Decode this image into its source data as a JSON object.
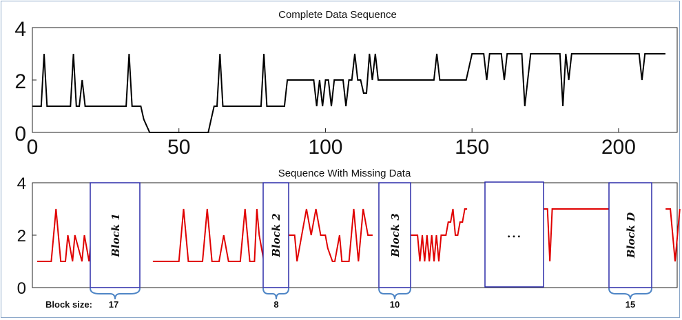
{
  "chart_data": [
    {
      "type": "line",
      "title": "Complete Data Sequence",
      "xlabel": "",
      "ylabel": "",
      "xlim": [
        0,
        220
      ],
      "ylim": [
        0,
        4
      ],
      "x_ticks": [
        "0",
        "50",
        "100",
        "150",
        "200"
      ],
      "y_ticks": [
        "0",
        "2",
        "4"
      ],
      "color": "#000000",
      "series": [
        {
          "x": [
            0,
            3,
            4,
            5,
            13,
            14,
            15,
            16,
            17,
            18,
            32,
            33,
            34,
            37,
            38,
            40,
            60,
            61,
            62,
            63,
            64,
            65,
            78,
            79,
            80,
            86,
            87,
            96,
            97,
            98,
            99,
            100,
            101,
            102,
            103,
            106,
            107,
            108,
            109,
            110,
            111,
            112,
            113,
            114,
            115,
            116,
            117,
            118,
            119,
            137,
            138,
            139,
            148,
            150,
            154,
            155,
            156,
            160,
            161,
            162,
            166,
            167,
            168,
            170,
            171,
            172,
            180,
            181,
            182,
            183,
            184,
            185,
            186,
            207,
            208,
            209,
            216
          ],
          "y": [
            1,
            1,
            3,
            1,
            1,
            3,
            1,
            1,
            2,
            1,
            1,
            3,
            1,
            1,
            0.5,
            0,
            0,
            0.5,
            1,
            1,
            3,
            1,
            1,
            3,
            1,
            1,
            2,
            2,
            1,
            2,
            1,
            2,
            2,
            1,
            2,
            2,
            1,
            2,
            2,
            3,
            2,
            2,
            1.5,
            1.5,
            3,
            2,
            3,
            2,
            2,
            2,
            3,
            2,
            2,
            3,
            3,
            2,
            3,
            3,
            2,
            3,
            3,
            3,
            1,
            3,
            3,
            3,
            3,
            1,
            3,
            2,
            3,
            3,
            3,
            3,
            2,
            3,
            3
          ]
        }
      ]
    },
    {
      "type": "line",
      "title": "Sequence With Missing Data",
      "xlabel": "",
      "ylabel": "",
      "xlim": [
        0,
        220
      ],
      "ylim": [
        0,
        4
      ],
      "y_ticks": [
        "0",
        "2",
        "4"
      ],
      "color": "#e00000",
      "series": [
        {
          "segments": [
            {
              "x": [
                2,
                8,
                10,
                12,
                14,
                15,
                17,
                18,
                21,
                22,
                24,
                25,
                27,
                33
              ],
              "y": [
                1,
                1,
                3,
                1,
                1,
                2,
                1,
                2,
                1,
                2,
                1,
                2,
                1,
                1
              ]
            },
            {
              "x": [
                51,
                62,
                64,
                66,
                72,
                74,
                76,
                79,
                81,
                83,
                88,
                90,
                92,
                94,
                95,
                96,
                98,
                99,
                100,
                101,
                102,
                103,
                104
              ],
              "y": [
                1,
                1,
                3,
                1,
                1,
                3,
                1,
                1,
                2,
                1,
                1,
                3,
                1,
                1,
                3,
                2,
                1,
                3,
                1,
                2,
                1,
                1,
                3
              ]
            },
            {
              "x": [
                106,
                111,
                112,
                114,
                116,
                118,
                120,
                122,
                124,
                125,
                127,
                128,
                130,
                131,
                134,
                136,
                138,
                140,
                142,
                144
              ],
              "y": [
                2,
                2,
                1,
                2,
                3,
                2,
                3,
                2,
                2,
                1.5,
                1,
                1,
                2,
                1,
                1,
                3,
                1,
                3,
                2,
                2
              ]
            },
            {
              "x": [
                156,
                163,
                164,
                165,
                166,
                167,
                168,
                169,
                170,
                171,
                172,
                173,
                174,
                175,
                176,
                177,
                178,
                179,
                180,
                181,
                182,
                183,
                184
              ],
              "y": [
                2,
                2,
                1,
                2,
                1,
                2,
                1,
                2,
                1,
                2,
                1,
                2,
                2,
                2,
                2.5,
                2.5,
                3,
                2,
                2,
                2.5,
                2.5,
                3,
                3
              ]
            },
            {
              "x": [
                209,
                210,
                211,
                212,
                213,
                214,
                215,
                216,
                218,
                219,
                220,
                252
              ],
              "y": [
                3,
                1,
                3,
                1,
                3,
                3,
                2,
                3,
                3,
                1,
                3,
                3
              ]
            },
            {
              "x": [
                268,
                270,
                272,
                274
              ],
              "y": [
                3,
                3,
                1,
                3
              ]
            }
          ]
        }
      ],
      "blocks": [
        {
          "label": "Block 1",
          "size": "17"
        },
        {
          "label": "Block 2",
          "size": "8"
        },
        {
          "label": "Block 3",
          "size": "10"
        },
        {
          "label": "",
          "size": ""
        },
        {
          "label": "Block D",
          "size": "15"
        }
      ],
      "ellipsis_text": "…",
      "block_size_caption": "Block size:"
    }
  ]
}
